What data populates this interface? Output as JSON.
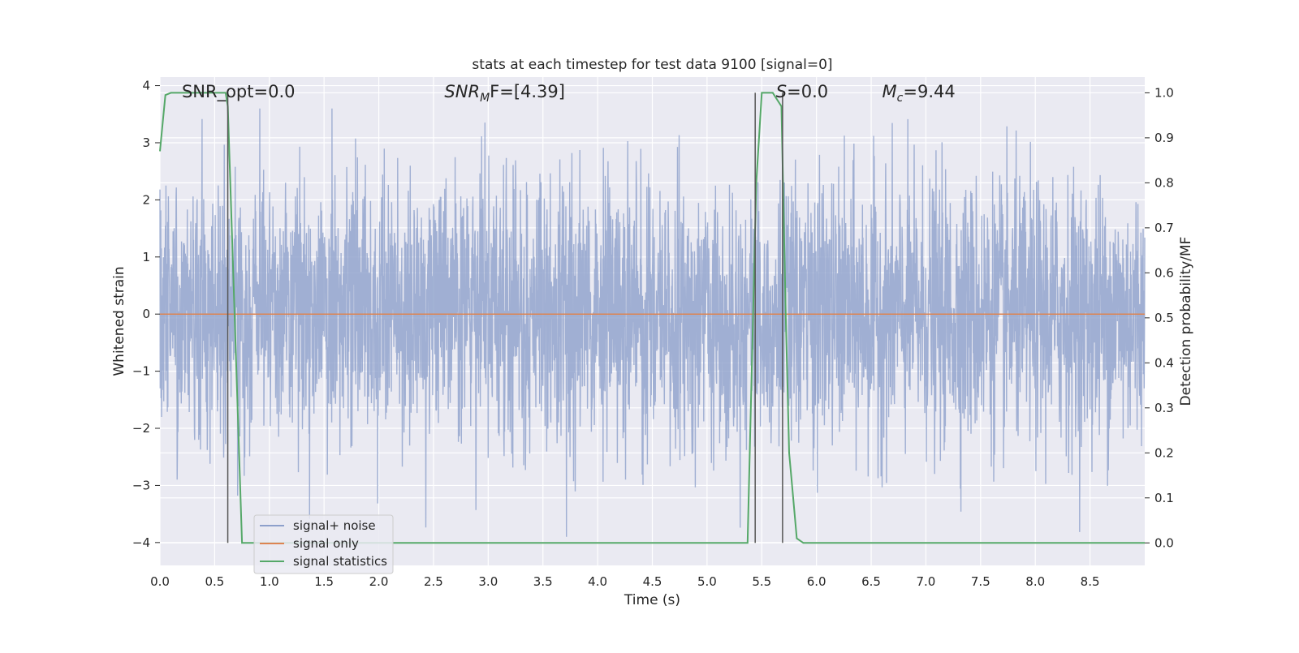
{
  "chart_data": {
    "type": "line",
    "title": "stats at each timestep for test data 9100 [signal=0]",
    "xlabel": "Time (s)",
    "ylabel": "Whitened strain",
    "y2label": "Detection probability/MF",
    "xlim": [
      0.0,
      9.0
    ],
    "ylim": [
      -4.4,
      4.15
    ],
    "y2lim": [
      -0.05,
      1.035
    ],
    "xticks": [
      0.0,
      0.5,
      1.0,
      1.5,
      2.0,
      2.5,
      3.0,
      3.5,
      4.0,
      4.5,
      5.0,
      5.5,
      6.0,
      6.5,
      7.0,
      7.5,
      8.0,
      8.5
    ],
    "xtick_labels": [
      "0.0",
      "0.5",
      "1.0",
      "1.5",
      "2.0",
      "2.5",
      "3.0",
      "3.5",
      "4.0",
      "4.5",
      "5.0",
      "5.5",
      "6.0",
      "6.5",
      "7.0",
      "7.5",
      "8.0",
      "8.5"
    ],
    "yticks": [
      -4,
      -3,
      -2,
      -1,
      0,
      1,
      2,
      3,
      4
    ],
    "ytick_labels": [
      "−4",
      "−3",
      "−2",
      "−1",
      "0",
      "1",
      "2",
      "3",
      "4"
    ],
    "y2ticks": [
      0.0,
      0.1,
      0.2,
      0.3,
      0.4,
      0.5,
      0.6,
      0.7,
      0.8,
      0.9,
      1.0
    ],
    "y2tick_labels": [
      "0.0",
      "0.1",
      "0.2",
      "0.3",
      "0.4",
      "0.5",
      "0.6",
      "0.7",
      "0.8",
      "0.9",
      "1.0"
    ],
    "grid": true,
    "legend_position": "lower-left",
    "annotations": [
      {
        "text": "SNR_opt=0.0",
        "x": 0.2
      },
      {
        "base": "SNR",
        "sub": "M",
        "tail": "F=[4.39]",
        "x": 2.6
      },
      {
        "base": "S",
        "tail": "=0.0",
        "x": 5.63
      },
      {
        "base": "M",
        "sub": "c",
        "tail": "=9.44",
        "x": 6.6
      }
    ],
    "vertical_lines": [
      0.62,
      5.44,
      5.69
    ],
    "series": [
      {
        "name": "signal+ noise",
        "color": "#8da0cb",
        "sampling_rate_hz": 400,
        "style": "gaussian noise, amplitude up to about ±3.5"
      },
      {
        "name": "signal only",
        "color": "#dd8452",
        "x": [
          0.0,
          9.0
        ],
        "y": [
          0.0,
          0.0
        ]
      },
      {
        "name": "signal statistics",
        "color": "#55a868",
        "axis": "right",
        "x": [
          0.0,
          0.05,
          0.1,
          0.6,
          0.62,
          0.75,
          0.8,
          5.37,
          5.45,
          5.5,
          5.6,
          5.68,
          5.72,
          5.75,
          5.78,
          5.82,
          5.88,
          9.0
        ],
        "y": [
          0.87,
          0.995,
          1.0,
          1.0,
          0.97,
          0.0,
          0.0,
          0.0,
          0.8,
          1.0,
          1.0,
          0.97,
          0.5,
          0.2,
          0.12,
          0.01,
          0.0,
          0.0
        ]
      }
    ]
  }
}
